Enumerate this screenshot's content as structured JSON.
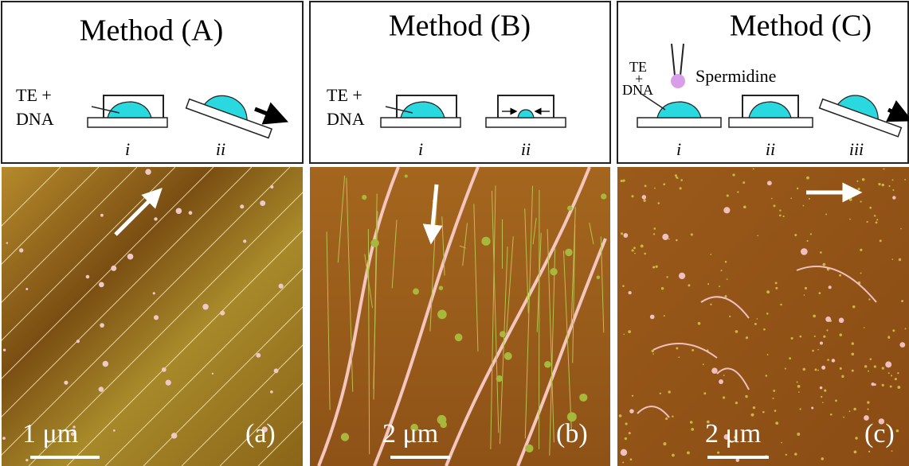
{
  "panels": [
    {
      "title": "Method (A)",
      "label_top": "TE +",
      "label_bottom": "DNA",
      "steps": [
        "i",
        "ii"
      ],
      "scale": "1 μm",
      "tag": "(a)"
    },
    {
      "title": "Method (B)",
      "label_top": "TE +",
      "label_bottom": "DNA",
      "steps": [
        "i",
        "ii"
      ],
      "scale": "2 μm",
      "tag": "(b)"
    },
    {
      "title": "Method (C)",
      "label_stack": [
        "TE",
        "+",
        "DNA"
      ],
      "reagent": "Spermidine",
      "steps": [
        "i",
        "ii",
        "iii"
      ],
      "scale": "2 μm",
      "tag": "(c)"
    }
  ]
}
